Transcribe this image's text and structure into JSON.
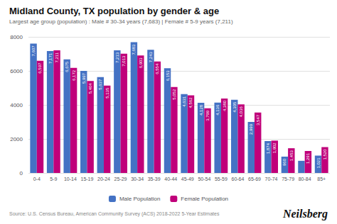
{
  "chart_data": {
    "type": "bar",
    "title": "Midland County, TX population by gender & age",
    "subtitle": "Largest age group (population) : Male # 30-34 years (7,683) | Female # 5-9 years (7,211)",
    "source": "Source: U.S. Census Bureau, American Community Survey (ACS) 2018-2022 5-Year Estimates",
    "annotations": [
      "Neilsberg"
    ],
    "categories": [
      "0-4",
      "5-9",
      "10-14",
      "15-19",
      "20-24",
      "25-29",
      "30-34",
      "35-39",
      "40-44",
      "45-49",
      "50-54",
      "55-59",
      "60-64",
      "65-69",
      "70-74",
      "75-79",
      "80-84",
      "85+"
    ],
    "series": [
      {
        "name": "Male Population",
        "color": "#4472c4",
        "values": [
          7607,
          7171,
          6675,
          5997,
          5637,
          7213,
          7683,
          7243,
          6153,
          4631,
          4128,
          4136,
          4305,
          2999,
          1874,
          960,
          714,
          1021
        ],
        "value_labels": [
          "7,607",
          "7,171",
          "6,675",
          "5,997",
          "5,637",
          "7,213",
          "7,683",
          "7,243",
          "6,153",
          "4,631",
          "4,128",
          "4,136",
          "4,305",
          "2,999",
          "1,874",
          "960",
          null,
          "1,021"
        ]
      },
      {
        "name": "Female Population",
        "color": "#c0007a",
        "values": [
          6597,
          7211,
          6172,
          5404,
          5135,
          7013,
          6903,
          6554,
          5052,
          4562,
          3799,
          4380,
          4036,
          3547,
          1902,
          1453,
          1291,
          1520
        ],
        "value_labels": [
          "6,597",
          "7,211",
          "6,172",
          "5,404",
          "5,135",
          "7,013",
          "6,903",
          "6,554",
          "5,052",
          "4,562",
          "3,799",
          "4,380",
          "4,036",
          "3,547",
          "1,902",
          "1,453",
          "1,291",
          "1,520"
        ]
      }
    ],
    "ylim": [
      0,
      8000
    ],
    "yticks": [
      0,
      2000,
      4000,
      6000,
      8000
    ],
    "grid": true,
    "legend": "bottom",
    "data_labels": true
  }
}
